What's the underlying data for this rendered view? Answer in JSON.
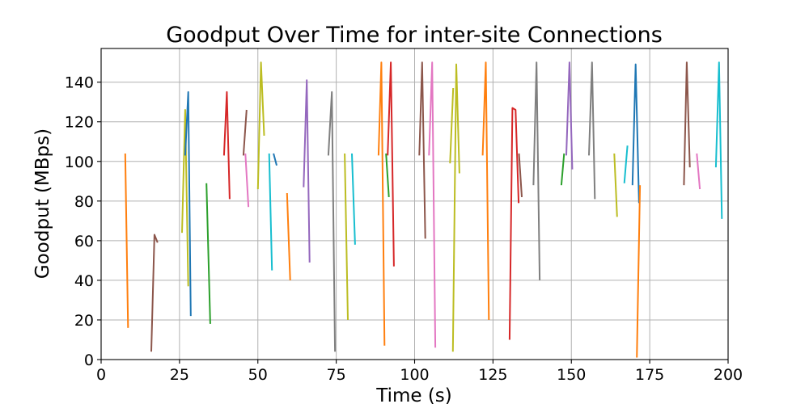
{
  "chart_data": {
    "type": "line",
    "title": "Goodput Over Time for inter-site Connections",
    "xlabel": "Time (s)",
    "ylabel": "Goodput (MBps)",
    "xlim": [
      0,
      200
    ],
    "ylim": [
      0,
      157
    ],
    "xticks": [
      0,
      25,
      50,
      75,
      100,
      125,
      150,
      175,
      200
    ],
    "yticks": [
      0,
      20,
      40,
      60,
      80,
      100,
      120,
      140
    ],
    "grid": true,
    "legend": "none",
    "palette": [
      "#1f77b4",
      "#ff7f0e",
      "#2ca02c",
      "#d62728",
      "#9467bd",
      "#8c564b",
      "#e377c2",
      "#7f7f7f",
      "#bcbd22",
      "#17becf"
    ],
    "series": [
      {
        "color": "#ff7f0e",
        "x": [
          7.7,
          8.6
        ],
        "y": [
          104,
          16
        ]
      },
      {
        "color": "#8c564b",
        "x": [
          16.0,
          17.0,
          18.0
        ],
        "y": [
          4,
          63,
          59
        ]
      },
      {
        "color": "#bcbd22",
        "x": [
          25.8,
          26.8,
          27.8
        ],
        "y": [
          64,
          126,
          37
        ]
      },
      {
        "color": "#1f77b4",
        "x": [
          26.8,
          27.8,
          28.6
        ],
        "y": [
          103,
          135,
          22
        ]
      },
      {
        "color": "#2ca02c",
        "x": [
          33.6,
          34.8
        ],
        "y": [
          89,
          18
        ]
      },
      {
        "color": "#d62728",
        "x": [
          39.2,
          40.1,
          41.0
        ],
        "y": [
          103,
          135,
          81
        ]
      },
      {
        "color": "#8c564b",
        "x": [
          45.4,
          46.4
        ],
        "y": [
          103,
          126
        ]
      },
      {
        "color": "#e377c2",
        "x": [
          46.0,
          47.0
        ],
        "y": [
          104,
          77
        ]
      },
      {
        "color": "#bcbd22",
        "x": [
          50.0,
          51.0,
          52.0
        ],
        "y": [
          86,
          150,
          113
        ]
      },
      {
        "color": "#17becf",
        "x": [
          53.6,
          54.5
        ],
        "y": [
          104,
          45
        ]
      },
      {
        "color": "#1f77b4",
        "x": [
          55.0,
          56.0
        ],
        "y": [
          104,
          98
        ]
      },
      {
        "color": "#ff7f0e",
        "x": [
          59.3,
          60.3
        ],
        "y": [
          84,
          40
        ]
      },
      {
        "color": "#9467bd",
        "x": [
          64.6,
          65.6,
          66.5
        ],
        "y": [
          87,
          141,
          49
        ]
      },
      {
        "color": "#7f7f7f",
        "x": [
          72.5,
          73.6,
          74.6
        ],
        "y": [
          103,
          135,
          4
        ]
      },
      {
        "color": "#bcbd22",
        "x": [
          77.7,
          78.7
        ],
        "y": [
          104,
          20
        ]
      },
      {
        "color": "#17becf",
        "x": [
          80.0,
          81.0
        ],
        "y": [
          104,
          58
        ]
      },
      {
        "color": "#ff7f0e",
        "x": [
          88.5,
          89.4,
          90.4
        ],
        "y": [
          103,
          150,
          7
        ]
      },
      {
        "color": "#2ca02c",
        "x": [
          90.9,
          91.8
        ],
        "y": [
          104,
          82
        ]
      },
      {
        "color": "#d62728",
        "x": [
          91.4,
          92.4,
          93.4
        ],
        "y": [
          103,
          150,
          47
        ]
      },
      {
        "color": "#8c564b",
        "x": [
          101.5,
          102.4,
          103.4
        ],
        "y": [
          103,
          150,
          61
        ]
      },
      {
        "color": "#e377c2",
        "x": [
          104.6,
          105.6,
          106.6
        ],
        "y": [
          103,
          150,
          6
        ]
      },
      {
        "color": "#bcbd22",
        "x": [
          111.3,
          112.3
        ],
        "y": [
          99,
          137
        ]
      },
      {
        "color": "#bcbd22",
        "x": [
          112.2,
          113.3,
          114.3
        ],
        "y": [
          4,
          149,
          94
        ]
      },
      {
        "color": "#ff7f0e",
        "x": [
          121.7,
          122.7,
          123.7
        ],
        "y": [
          103,
          150,
          20
        ]
      },
      {
        "color": "#d62728",
        "x": [
          130.3,
          131.2,
          132.2,
          133.2
        ],
        "y": [
          10,
          127,
          126,
          79
        ]
      },
      {
        "color": "#8c564b",
        "x": [
          133.3,
          134.2
        ],
        "y": [
          104,
          82
        ]
      },
      {
        "color": "#7f7f7f",
        "x": [
          137.9,
          138.9,
          139.9
        ],
        "y": [
          88,
          150,
          40
        ]
      },
      {
        "color": "#2ca02c",
        "x": [
          146.8,
          147.7
        ],
        "y": [
          88,
          104
        ]
      },
      {
        "color": "#9467bd",
        "x": [
          148.4,
          149.4,
          150.3
        ],
        "y": [
          103,
          150,
          96
        ]
      },
      {
        "color": "#7f7f7f",
        "x": [
          155.6,
          156.6,
          157.5
        ],
        "y": [
          103,
          150,
          81
        ]
      },
      {
        "color": "#bcbd22",
        "x": [
          163.7,
          164.6
        ],
        "y": [
          104,
          72
        ]
      },
      {
        "color": "#17becf",
        "x": [
          166.9,
          167.9
        ],
        "y": [
          89,
          108
        ]
      },
      {
        "color": "#1f77b4",
        "x": [
          169.5,
          170.5,
          171.6
        ],
        "y": [
          88,
          149,
          79
        ]
      },
      {
        "color": "#ff7f0e",
        "x": [
          170.9,
          171.9
        ],
        "y": [
          1,
          88
        ]
      },
      {
        "color": "#8c564b",
        "x": [
          185.9,
          186.8,
          187.8
        ],
        "y": [
          88,
          150,
          97
        ]
      },
      {
        "color": "#e377c2",
        "x": [
          190.0,
          191.0
        ],
        "y": [
          104,
          86
        ]
      },
      {
        "color": "#17becf",
        "x": [
          196.1,
          197.1,
          198.0
        ],
        "y": [
          97,
          150,
          71
        ]
      }
    ]
  }
}
